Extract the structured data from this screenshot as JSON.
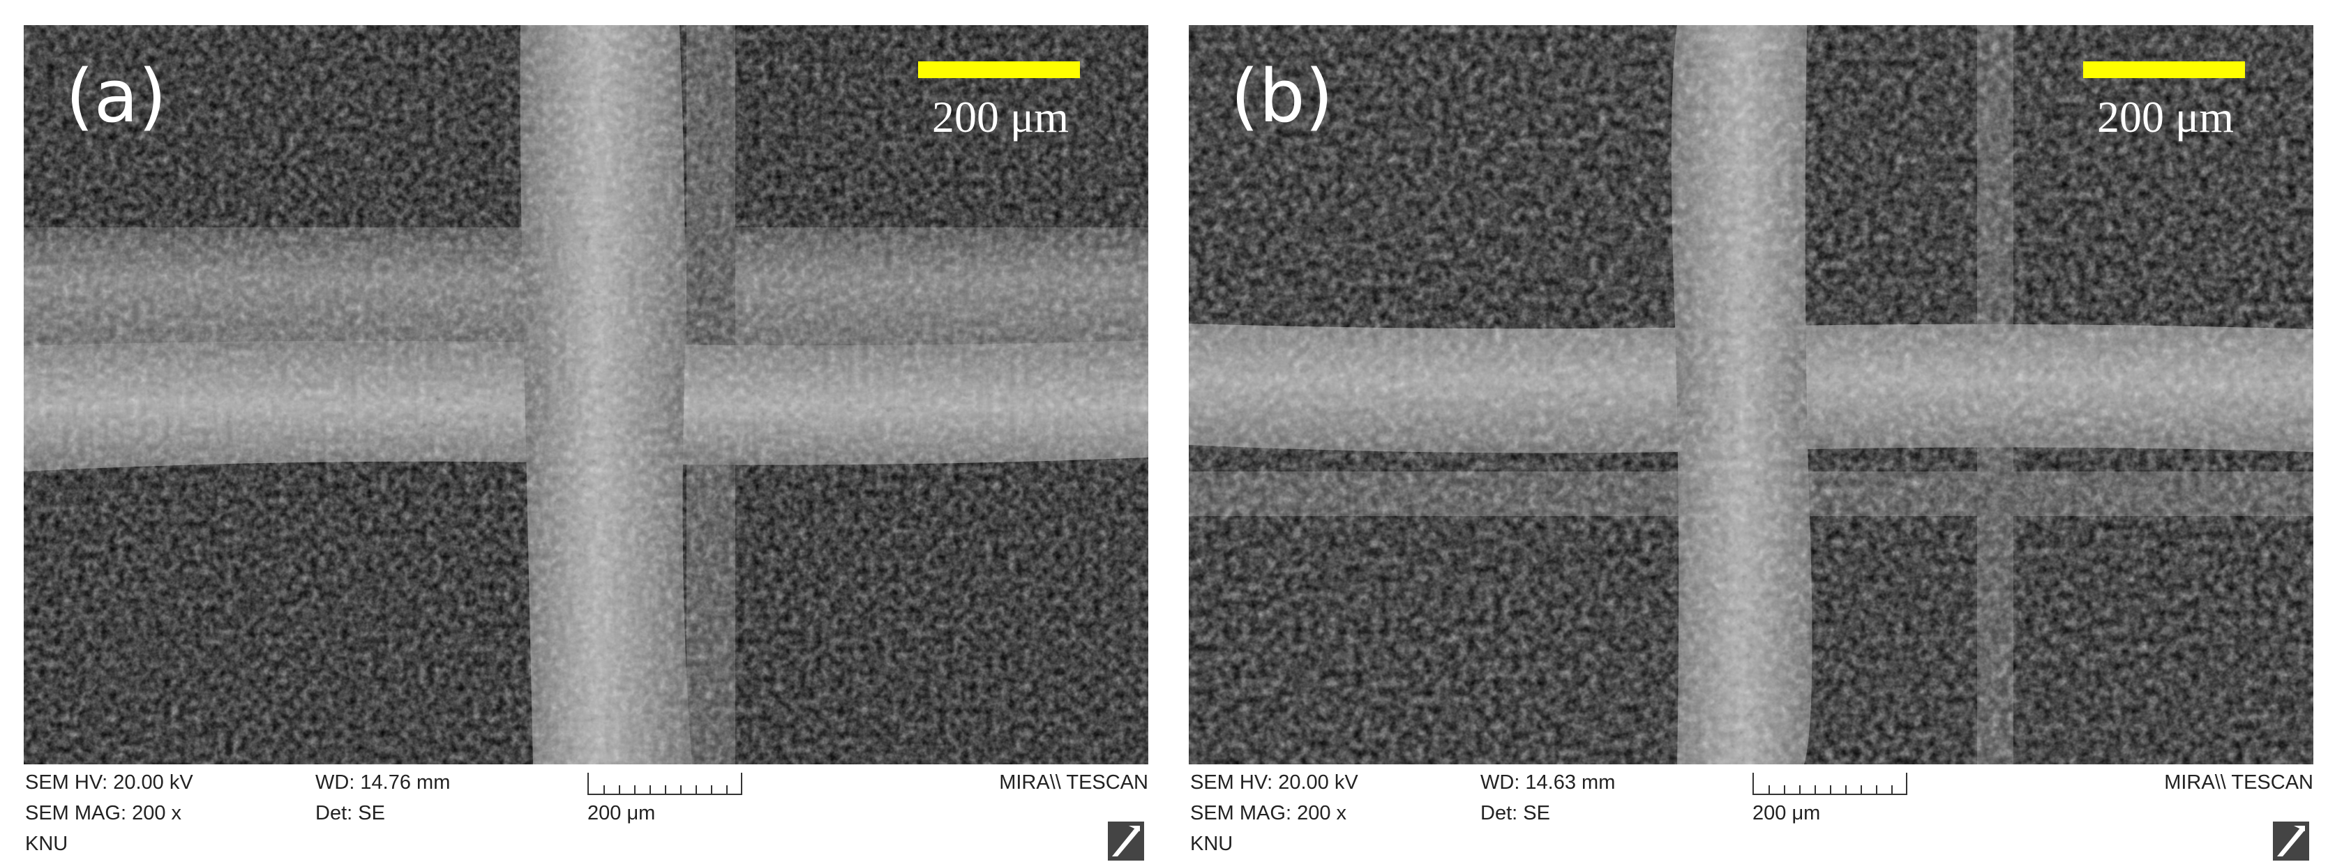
{
  "panels": [
    {
      "label": "(a)",
      "scale_label": "200 μm",
      "info": {
        "hv": "SEM HV: 20.00 kV",
        "wd": "WD: 14.76 mm",
        "vendor": "MIRA\\\\ TESCAN",
        "mag": "SEM MAG: 200 x",
        "det": "Det: SE",
        "scale": "200 μm",
        "lab": "KNU"
      }
    },
    {
      "label": "(b)",
      "scale_label": "200 μm",
      "info": {
        "hv": "SEM HV: 20.00 kV",
        "wd": "WD: 14.63 mm",
        "vendor": "MIRA\\\\ TESCAN",
        "mag": "SEM MAG: 200 x",
        "det": "Det: SE",
        "scale": "200 μm",
        "lab": "KNU"
      }
    }
  ],
  "colors": {
    "scale_bar": "#ffff00",
    "background": "#000000",
    "fiber": "#9a9a9a"
  },
  "icons": {
    "logo": "tescan-logo-icon"
  }
}
